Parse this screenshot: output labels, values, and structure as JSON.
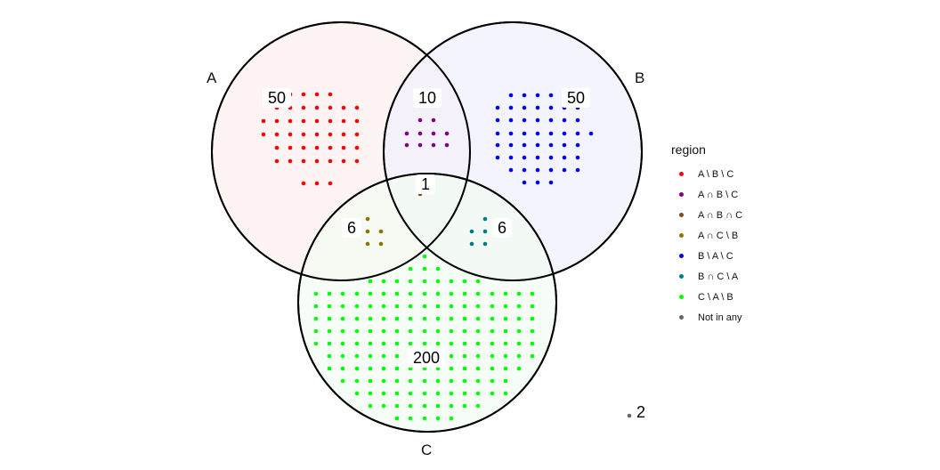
{
  "sets": [
    {
      "key": "A",
      "label": "A",
      "fill": "#fdf0f0"
    },
    {
      "key": "B",
      "label": "B",
      "fill": "#f0f0fd"
    },
    {
      "key": "C",
      "label": "C",
      "fill": "#f3fcf3"
    }
  ],
  "legend": {
    "title": "region",
    "items": [
      {
        "label": "A \\ B \\ C",
        "color": "#ff0000"
      },
      {
        "label": "A ∩ B \\ C",
        "color": "#800080"
      },
      {
        "label": "A ∩ B ∩ C",
        "color": "#7b4a1e"
      },
      {
        "label": "A ∩ C \\ B",
        "color": "#8b7500"
      },
      {
        "label": "B \\ A \\ C",
        "color": "#0000ff"
      },
      {
        "label": "B ∩ C \\ A",
        "color": "#007b8b"
      },
      {
        "label": "C \\ A \\ B",
        "color": "#00ff00"
      },
      {
        "label": "Not in any",
        "color": "#666666"
      }
    ]
  },
  "chart_data": {
    "type": "venn",
    "sets": [
      "A",
      "B",
      "C"
    ],
    "regions": [
      {
        "region": "A \\ B \\ C",
        "count": "50",
        "count_value": 50,
        "color": "#ff0000"
      },
      {
        "region": "A ∩ B \\ C",
        "count": "10",
        "count_value": 10,
        "color": "#800080"
      },
      {
        "region": "A ∩ B ∩ C",
        "count": "1",
        "count_value": 1,
        "color": "#7b4a1e"
      },
      {
        "region": "A ∩ C \\ B",
        "count": "6",
        "count_value": 6,
        "color": "#8b7500"
      },
      {
        "region": "B \\ A \\ C",
        "count": "50",
        "count_value": 50,
        "color": "#0000ff"
      },
      {
        "region": "B ∩ C \\ A",
        "count": "6",
        "count_value": 6,
        "color": "#007b8b"
      },
      {
        "region": "C \\ A \\ B",
        "count": "200",
        "count_value": 200,
        "color": "#00ff00"
      },
      {
        "region": "Not in any",
        "count": "2",
        "count_value": 2,
        "color": "#666666"
      }
    ]
  }
}
